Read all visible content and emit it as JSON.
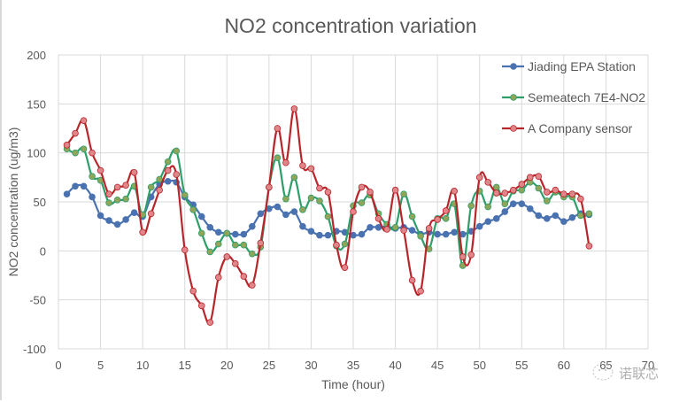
{
  "chart_data": {
    "type": "line",
    "title": "NO2 concentration variation",
    "xlabel": "Time (hour)",
    "ylabel": "NO2 concentration (ug/m3)",
    "xlim": [
      0,
      70
    ],
    "ylim": [
      -100,
      200
    ],
    "xticks": [
      0,
      5,
      10,
      15,
      20,
      25,
      30,
      35,
      40,
      45,
      50,
      55,
      60,
      65,
      70
    ],
    "yticks": [
      -100,
      -50,
      0,
      50,
      100,
      150,
      200
    ],
    "grid": true,
    "legend_position": "top-right",
    "x": [
      1,
      2,
      3,
      4,
      5,
      6,
      7,
      8,
      9,
      10,
      11,
      12,
      13,
      14,
      15,
      16,
      17,
      18,
      19,
      20,
      21,
      22,
      23,
      24,
      25,
      26,
      27,
      28,
      29,
      30,
      31,
      32,
      33,
      34,
      35,
      36,
      37,
      38,
      39,
      40,
      41,
      42,
      43,
      44,
      45,
      46,
      47,
      48,
      49,
      50,
      51,
      52,
      53,
      54,
      55,
      56,
      57,
      58,
      59,
      60,
      61,
      62,
      63
    ],
    "series": [
      {
        "name": "Jiading EPA Station",
        "line_color": "#4a72b0",
        "marker_color": "#4a72b0",
        "values": [
          58,
          66,
          66,
          55,
          36,
          31,
          27,
          32,
          39,
          35,
          55,
          68,
          71,
          70,
          55,
          47,
          35,
          24,
          19,
          18,
          17,
          17,
          25,
          38,
          43,
          45,
          37,
          40,
          25,
          20,
          16,
          16,
          20,
          19,
          16,
          17,
          24,
          24,
          25,
          23,
          24,
          21,
          17,
          19,
          17,
          17,
          19,
          17,
          20,
          25,
          30,
          33,
          40,
          48,
          48,
          43,
          36,
          33,
          36,
          30,
          34,
          38,
          37
        ]
      },
      {
        "name": "Semeatech 7E4-NO2",
        "line_color": "#2e9e6a",
        "marker_color": "#8fa55a",
        "values": [
          104,
          100,
          104,
          76,
          72,
          49,
          52,
          53,
          66,
          37,
          65,
          73,
          91,
          102,
          57,
          42,
          18,
          -1,
          7,
          18,
          6,
          6,
          -3,
          4,
          65,
          95,
          53,
          75,
          42,
          54,
          51,
          35,
          5,
          7,
          46,
          49,
          57,
          38,
          27,
          24,
          58,
          35,
          15,
          2,
          33,
          33,
          48,
          -15,
          46,
          61,
          45,
          65,
          48,
          61,
          62,
          70,
          64,
          51,
          60,
          55,
          55,
          36,
          38
        ]
      },
      {
        "name": "A Company sensor",
        "line_color": "#b8262b",
        "marker_color": "#e0868a",
        "values": [
          108,
          120,
          133,
          100,
          82,
          58,
          65,
          67,
          80,
          19,
          38,
          62,
          82,
          78,
          1,
          -41,
          -56,
          -73,
          -27,
          -6,
          -13,
          -26,
          -35,
          8,
          65,
          125,
          90,
          145,
          87,
          84,
          64,
          60,
          6,
          -17,
          40,
          65,
          60,
          33,
          22,
          62,
          21,
          -30,
          -41,
          23,
          32,
          41,
          61,
          -6,
          -4,
          75,
          70,
          59,
          59,
          62,
          68,
          75,
          76,
          60,
          62,
          58,
          58,
          53,
          5
        ]
      }
    ]
  },
  "watermark": {
    "text": "诺联芯",
    "icon": "wechat-bubble-icon"
  }
}
